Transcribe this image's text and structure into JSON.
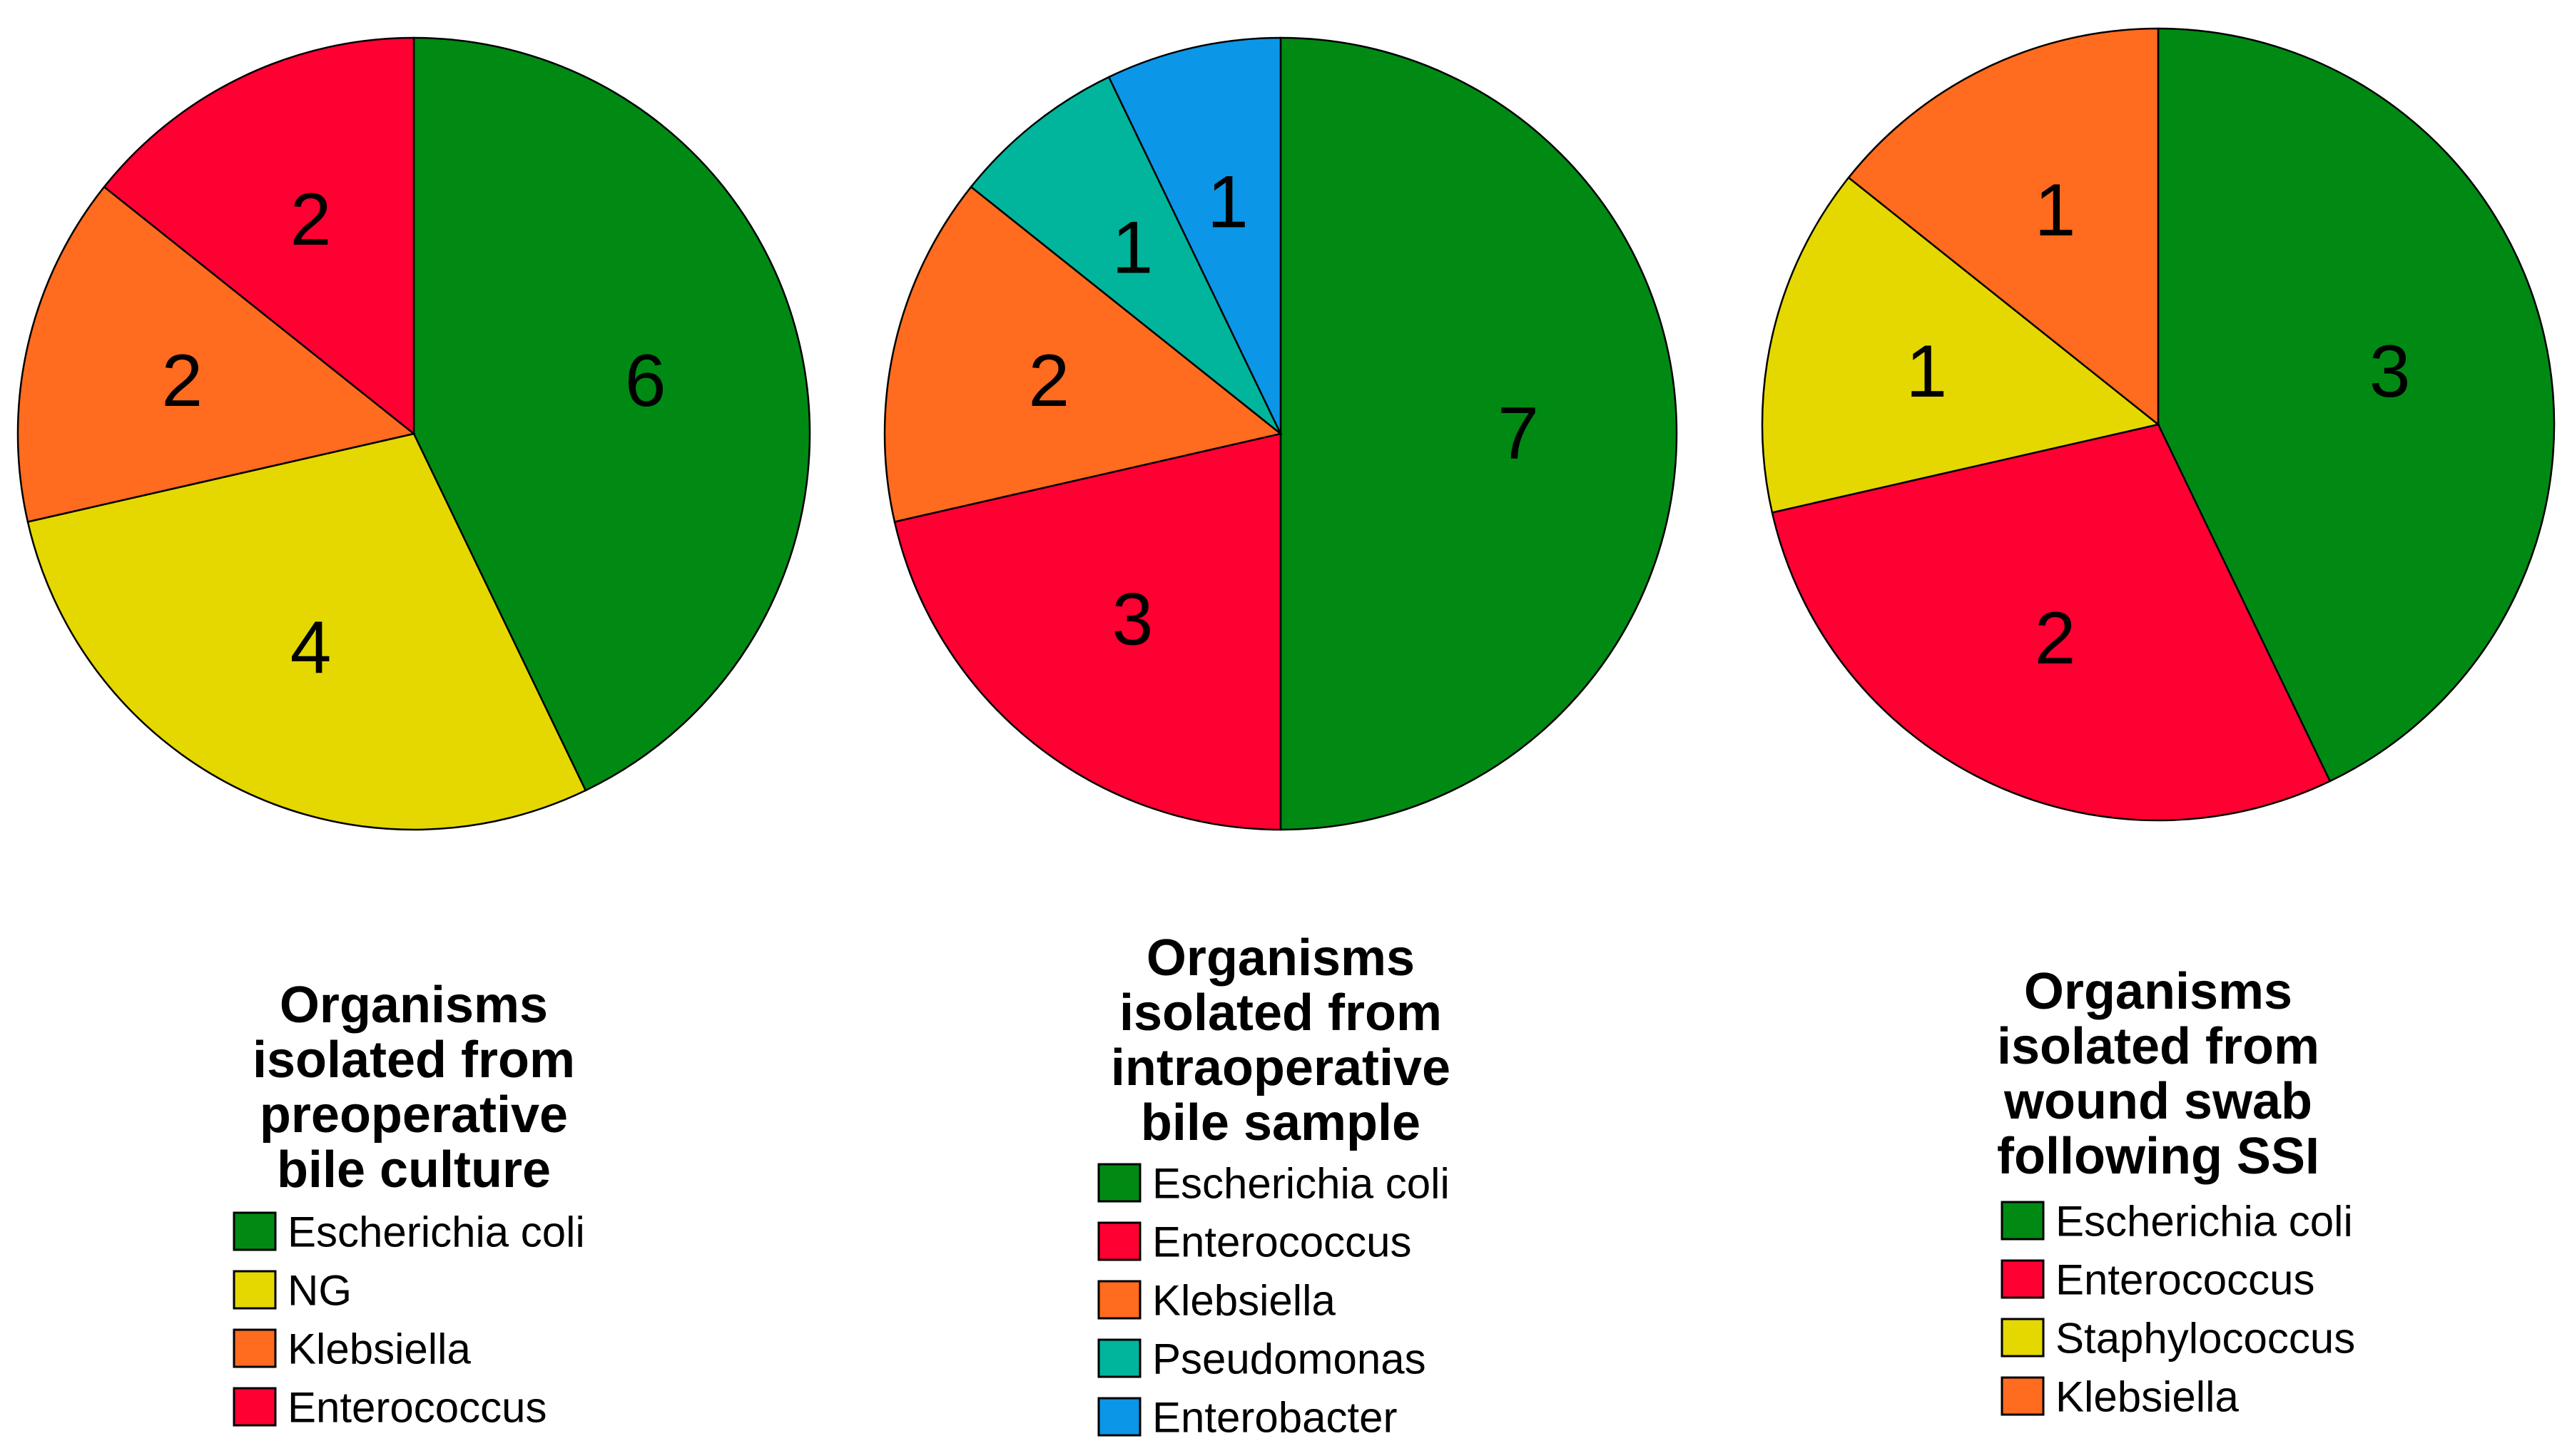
{
  "chart_data": [
    {
      "type": "pie",
      "title_lines": [
        "Organisms",
        "isolated from",
        "preoperative",
        "bile culture"
      ],
      "slices": [
        {
          "label": "Escherichia coli",
          "value": 6,
          "color": "#008A14"
        },
        {
          "label": "NG",
          "value": 4,
          "color": "#E5D800"
        },
        {
          "label": "Klebsiella",
          "value": 2,
          "color": "#FF6B1F"
        },
        {
          "label": "Enterococcus",
          "value": 2,
          "color": "#FF0033"
        }
      ],
      "legend": [
        "Escherichia coli",
        "NG",
        "Klebsiella",
        "Enterococcus"
      ]
    },
    {
      "type": "pie",
      "title_lines": [
        "Organisms",
        "isolated from",
        "intraoperative",
        "bile sample"
      ],
      "slices": [
        {
          "label": "Escherichia coli",
          "value": 7,
          "color": "#008A14"
        },
        {
          "label": "Enterococcus",
          "value": 3,
          "color": "#FF0033"
        },
        {
          "label": "Klebsiella",
          "value": 2,
          "color": "#FF6B1F"
        },
        {
          "label": "Pseudomonas",
          "value": 1,
          "color": "#00B59C"
        },
        {
          "label": "Enterobacter",
          "value": 1,
          "color": "#0B96E8"
        }
      ],
      "legend": [
        "Escherichia coli",
        "Enterococcus",
        "Klebsiella",
        "Pseudomonas",
        "Enterobacter"
      ]
    },
    {
      "type": "pie",
      "title_lines": [
        "Organisms",
        "isolated from",
        "wound swab",
        "following SSI"
      ],
      "slices": [
        {
          "label": "Escherichia coli",
          "value": 3,
          "color": "#008A14"
        },
        {
          "label": "Enterococcus",
          "value": 2,
          "color": "#FF0033"
        },
        {
          "label": "Staphylococcus",
          "value": 1,
          "color": "#E5D800"
        },
        {
          "label": "Klebsiella",
          "value": 1,
          "color": "#FF6B1F"
        }
      ],
      "legend": [
        "Escherichia coli",
        "Enterococcus",
        "Staphylococcus",
        "Klebsiella"
      ]
    }
  ]
}
